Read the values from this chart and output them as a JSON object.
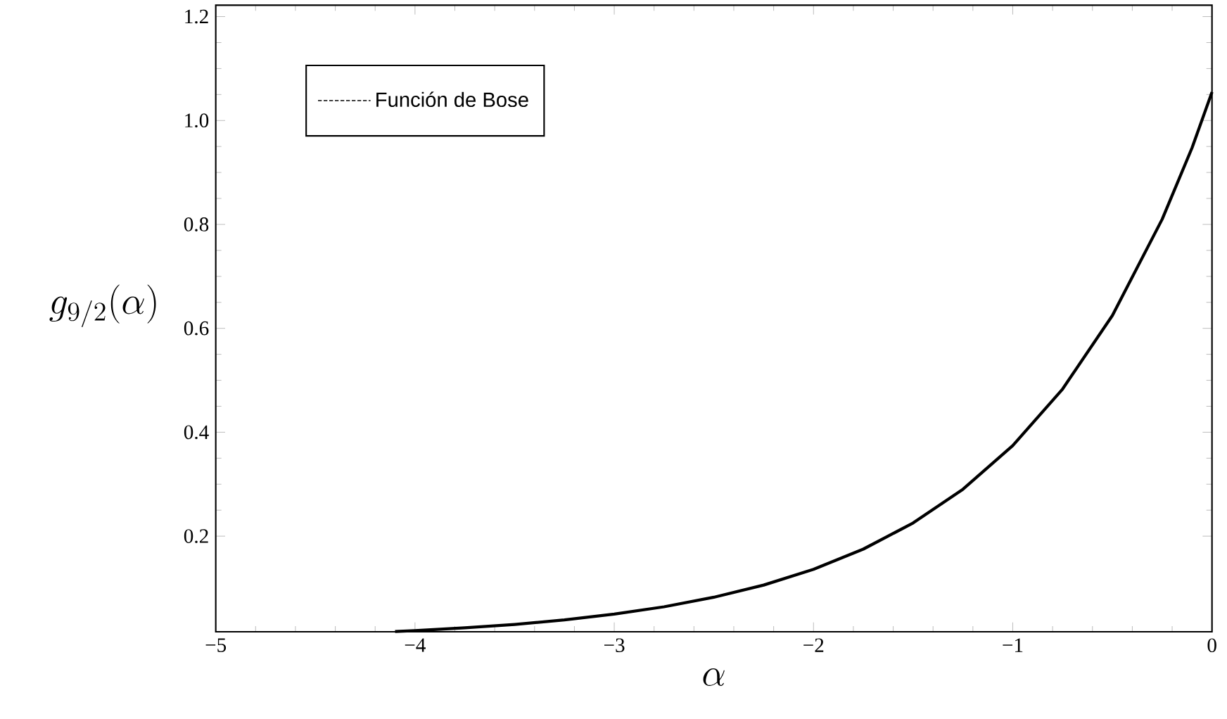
{
  "chart_data": {
    "type": "line",
    "xlabel": "\\alpha",
    "ylabel": "g_{9/2}(\\alpha)",
    "x": [
      -4.1,
      -4,
      -3.75,
      -3.5,
      -3.25,
      -3,
      -2.75,
      -2.5,
      -2.25,
      -2,
      -1.75,
      -1.5,
      -1.25,
      -1,
      -0.75,
      -0.5,
      -0.25,
      -0.1,
      0
    ],
    "series": [
      {
        "name": "Función de Bose",
        "color": "#000000",
        "values": [
          0.0166,
          0.0183,
          0.0236,
          0.0302,
          0.0388,
          0.0499,
          0.0641,
          0.0824,
          0.1059,
          0.1362,
          0.1751,
          0.2254,
          0.2903,
          0.3742,
          0.4831,
          0.6247,
          0.81,
          0.9475,
          1.0547
        ]
      }
    ],
    "xlim": [
      -5,
      0
    ],
    "ylim": [
      0.016,
      1.222
    ],
    "xticks": [
      {
        "value": -5,
        "label": "−5"
      },
      {
        "value": -4,
        "label": "−4"
      },
      {
        "value": -3,
        "label": "−3"
      },
      {
        "value": -2,
        "label": "−2"
      },
      {
        "value": -1,
        "label": "−1"
      },
      0
    ],
    "yticks": [
      {
        "value": 0.2,
        "label": "0.2"
      },
      {
        "value": 0.4,
        "label": "0.4"
      },
      {
        "value": 0.6,
        "label": "0.6"
      },
      {
        "value": 0.8,
        "label": "0.8"
      },
      {
        "value": 1.0,
        "label": "1.0"
      },
      {
        "value": 1.2,
        "label": "1.2"
      }
    ],
    "legend": "top left",
    "line_style": "solid",
    "marker": "none"
  }
}
